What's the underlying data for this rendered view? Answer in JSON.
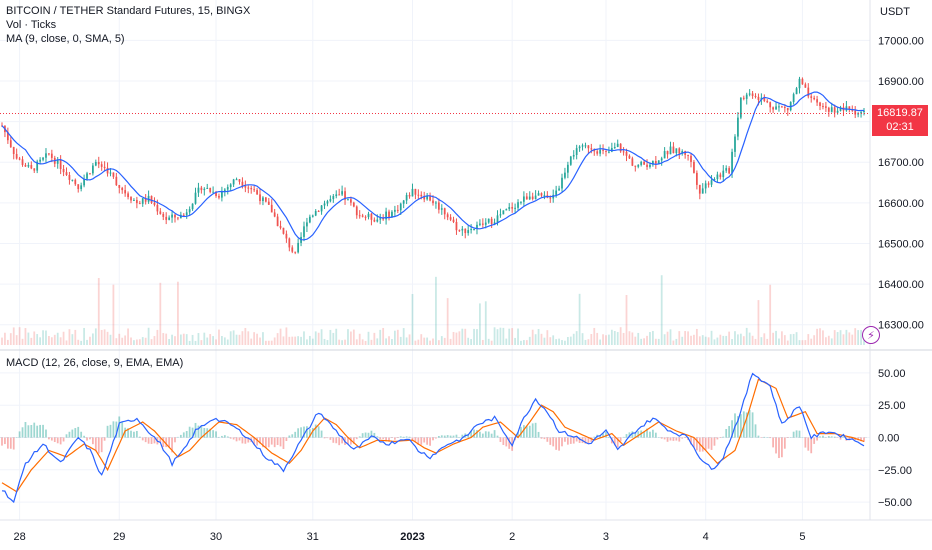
{
  "header": {
    "title": "BITCOIN / TETHER Standard Futures, 15, BINGX",
    "vol_label": "Vol · Ticks",
    "ma_label": "MA (9, close, 0, SMA, 5)",
    "macd_label": "MACD (12, 26, close, 9, EMA, EMA)",
    "currency": "USDT"
  },
  "last_price": {
    "value": "16819.87",
    "countdown": "02:31"
  },
  "colors": {
    "up": "#26a69a",
    "down": "#ef5350",
    "ma": "#2962ff",
    "macd": "#2962ff",
    "signal": "#ff6d00",
    "hist_up": "#26a69a",
    "hist_down": "#ef5350",
    "last_price": "#f23645"
  },
  "icons": {
    "replay": "lightning-icon"
  },
  "chart_data": [
    {
      "type": "candlestick",
      "title": "BITCOIN / TETHER Standard Futures, 15, BINGX",
      "ylim": [
        16250,
        17050
      ],
      "y_ticks": [
        "17000.00",
        "16900.00",
        "16800.00",
        "16700.00",
        "16600.00",
        "16500.00",
        "16400.00",
        "16300.00"
      ],
      "x_ticks": [
        "28",
        "29",
        "30",
        "31",
        "2023",
        "2",
        "3",
        "4",
        "5"
      ],
      "last_value": 16819.87,
      "price_anchors": [
        [
          0,
          16790
        ],
        [
          5,
          16710
        ],
        [
          10,
          16680
        ],
        [
          16,
          16720
        ],
        [
          20,
          16690
        ],
        [
          26,
          16640
        ],
        [
          32,
          16700
        ],
        [
          36,
          16680
        ],
        [
          40,
          16640
        ],
        [
          46,
          16600
        ],
        [
          50,
          16610
        ],
        [
          56,
          16560
        ],
        [
          62,
          16570
        ],
        [
          68,
          16640
        ],
        [
          74,
          16620
        ],
        [
          80,
          16660
        ],
        [
          86,
          16630
        ],
        [
          92,
          16580
        ],
        [
          96,
          16520
        ],
        [
          100,
          16470
        ],
        [
          104,
          16560
        ],
        [
          110,
          16600
        ],
        [
          116,
          16620
        ],
        [
          122,
          16570
        ],
        [
          128,
          16560
        ],
        [
          134,
          16580
        ],
        [
          140,
          16630
        ],
        [
          146,
          16610
        ],
        [
          152,
          16570
        ],
        [
          156,
          16530
        ],
        [
          162,
          16540
        ],
        [
          168,
          16560
        ],
        [
          174,
          16590
        ],
        [
          180,
          16620
        ],
        [
          186,
          16610
        ],
        [
          190,
          16640
        ],
        [
          194,
          16720
        ],
        [
          200,
          16740
        ],
        [
          206,
          16720
        ],
        [
          210,
          16740
        ],
        [
          216,
          16690
        ],
        [
          222,
          16700
        ],
        [
          228,
          16730
        ],
        [
          234,
          16720
        ],
        [
          238,
          16630
        ],
        [
          242,
          16660
        ],
        [
          248,
          16680
        ],
        [
          252,
          16860
        ],
        [
          256,
          16870
        ],
        [
          262,
          16840
        ],
        [
          268,
          16830
        ],
        [
          272,
          16900
        ],
        [
          276,
          16850
        ],
        [
          282,
          16830
        ],
        [
          288,
          16830
        ],
        [
          294,
          16820
        ]
      ],
      "n_candles": 295
    },
    {
      "type": "macd",
      "title": "MACD (12, 26, close, 9, EMA, EMA)",
      "ylim": [
        -60,
        60
      ],
      "y_ticks": [
        "50.00",
        "25.00",
        "0.00",
        "−25.00",
        "−50.00"
      ],
      "series": [
        {
          "name": "MACD",
          "anchors": [
            [
              0,
              -40
            ],
            [
              4,
              -50
            ],
            [
              8,
              -20
            ],
            [
              14,
              -5
            ],
            [
              20,
              -20
            ],
            [
              26,
              0
            ],
            [
              30,
              -10
            ],
            [
              34,
              -30
            ],
            [
              40,
              10
            ],
            [
              46,
              15
            ],
            [
              50,
              5
            ],
            [
              54,
              -5
            ],
            [
              58,
              -20
            ],
            [
              62,
              -10
            ],
            [
              66,
              5
            ],
            [
              72,
              15
            ],
            [
              78,
              10
            ],
            [
              84,
              0
            ],
            [
              90,
              -15
            ],
            [
              96,
              -25
            ],
            [
              100,
              -10
            ],
            [
              104,
              5
            ],
            [
              108,
              20
            ],
            [
              112,
              10
            ],
            [
              116,
              0
            ],
            [
              120,
              -10
            ],
            [
              126,
              0
            ],
            [
              132,
              -5
            ],
            [
              138,
              0
            ],
            [
              142,
              -10
            ],
            [
              146,
              -15
            ],
            [
              152,
              -5
            ],
            [
              158,
              0
            ],
            [
              162,
              10
            ],
            [
              168,
              15
            ],
            [
              174,
              -5
            ],
            [
              178,
              15
            ],
            [
              182,
              30
            ],
            [
              186,
              20
            ],
            [
              190,
              5
            ],
            [
              196,
              0
            ],
            [
              200,
              -5
            ],
            [
              206,
              5
            ],
            [
              210,
              -10
            ],
            [
              216,
              5
            ],
            [
              222,
              15
            ],
            [
              228,
              5
            ],
            [
              234,
              0
            ],
            [
              238,
              -15
            ],
            [
              242,
              -25
            ],
            [
              246,
              -15
            ],
            [
              252,
              20
            ],
            [
              256,
              50
            ],
            [
              262,
              40
            ],
            [
              266,
              10
            ],
            [
              272,
              25
            ],
            [
              276,
              0
            ],
            [
              282,
              5
            ],
            [
              288,
              0
            ],
            [
              294,
              -5
            ]
          ]
        },
        {
          "name": "Signal",
          "anchors": [
            [
              0,
              -35
            ],
            [
              5,
              -42
            ],
            [
              10,
              -25
            ],
            [
              16,
              -10
            ],
            [
              22,
              -15
            ],
            [
              28,
              -5
            ],
            [
              32,
              -10
            ],
            [
              36,
              -25
            ],
            [
              42,
              5
            ],
            [
              48,
              12
            ],
            [
              52,
              5
            ],
            [
              56,
              -5
            ],
            [
              60,
              -15
            ],
            [
              64,
              -10
            ],
            [
              68,
              0
            ],
            [
              74,
              12
            ],
            [
              80,
              10
            ],
            [
              86,
              0
            ],
            [
              92,
              -12
            ],
            [
              98,
              -20
            ],
            [
              102,
              -10
            ],
            [
              106,
              5
            ],
            [
              110,
              15
            ],
            [
              114,
              10
            ],
            [
              118,
              0
            ],
            [
              122,
              -8
            ],
            [
              128,
              -2
            ],
            [
              134,
              -3
            ],
            [
              140,
              -2
            ],
            [
              144,
              -8
            ],
            [
              148,
              -12
            ],
            [
              154,
              -5
            ],
            [
              160,
              0
            ],
            [
              164,
              8
            ],
            [
              170,
              12
            ],
            [
              176,
              0
            ],
            [
              180,
              12
            ],
            [
              184,
              25
            ],
            [
              188,
              20
            ],
            [
              192,
              8
            ],
            [
              198,
              2
            ],
            [
              202,
              -2
            ],
            [
              208,
              3
            ],
            [
              212,
              -6
            ],
            [
              218,
              3
            ],
            [
              224,
              12
            ],
            [
              230,
              5
            ],
            [
              236,
              0
            ],
            [
              240,
              -10
            ],
            [
              244,
              -20
            ],
            [
              250,
              -10
            ],
            [
              254,
              15
            ],
            [
              258,
              45
            ],
            [
              264,
              38
            ],
            [
              268,
              15
            ],
            [
              274,
              20
            ],
            [
              278,
              3
            ],
            [
              284,
              3
            ],
            [
              290,
              0
            ],
            [
              294,
              -3
            ]
          ]
        }
      ]
    }
  ]
}
